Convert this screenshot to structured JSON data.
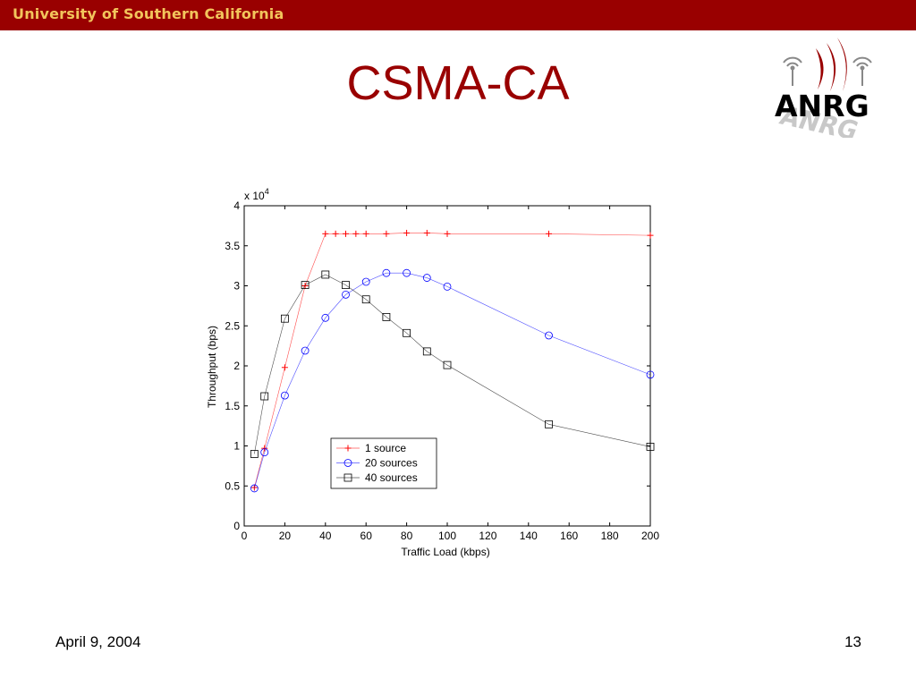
{
  "header": {
    "university": "University of Southern California"
  },
  "slide": {
    "title": "CSMA-CA",
    "date": "April 9, 2004",
    "page": "13"
  },
  "logo": {
    "text": "ANRG",
    "icon": "antenna-icon",
    "brand_color": "#990000"
  },
  "colors": {
    "header_bg": "#990000",
    "header_text": "#f2c55c",
    "title": "#990000"
  },
  "chart_data": {
    "type": "line",
    "xlabel": "Traffic Load (kbps)",
    "ylabel": "Throughput (bps)",
    "y_multiplier_label": "x 10",
    "y_multiplier_exp": "4",
    "xlim": [
      0,
      200
    ],
    "ylim": [
      0,
      4
    ],
    "xticks": [
      0,
      20,
      40,
      60,
      80,
      100,
      120,
      140,
      160,
      180,
      200
    ],
    "yticks": [
      0,
      0.5,
      1,
      1.5,
      2,
      2.5,
      3,
      3.5,
      4
    ],
    "grid": false,
    "legend_position": "lower-center",
    "series": [
      {
        "name": "1 source",
        "color": "#ff0000",
        "marker": "plus",
        "x": [
          5,
          10,
          20,
          30,
          40,
          45,
          50,
          55,
          60,
          70,
          80,
          90,
          100,
          150,
          200
        ],
        "y": [
          0.48,
          0.97,
          1.98,
          3.0,
          3.65,
          3.65,
          3.65,
          3.65,
          3.65,
          3.65,
          3.66,
          3.66,
          3.65,
          3.65,
          3.63
        ]
      },
      {
        "name": "20 sources",
        "color": "#0000ff",
        "marker": "circle",
        "x": [
          5,
          10,
          20,
          30,
          40,
          50,
          60,
          70,
          80,
          90,
          100,
          150,
          200
        ],
        "y": [
          0.47,
          0.92,
          1.63,
          2.19,
          2.6,
          2.89,
          3.05,
          3.16,
          3.16,
          3.1,
          2.99,
          2.38,
          1.89
        ]
      },
      {
        "name": "40 sources",
        "color": "#000000",
        "marker": "square",
        "x": [
          5,
          10,
          20,
          30,
          40,
          50,
          60,
          70,
          80,
          90,
          100,
          150,
          200
        ],
        "y": [
          0.9,
          1.62,
          2.59,
          3.01,
          3.14,
          3.01,
          2.83,
          2.61,
          2.41,
          2.18,
          2.01,
          1.27,
          0.99
        ]
      }
    ]
  }
}
